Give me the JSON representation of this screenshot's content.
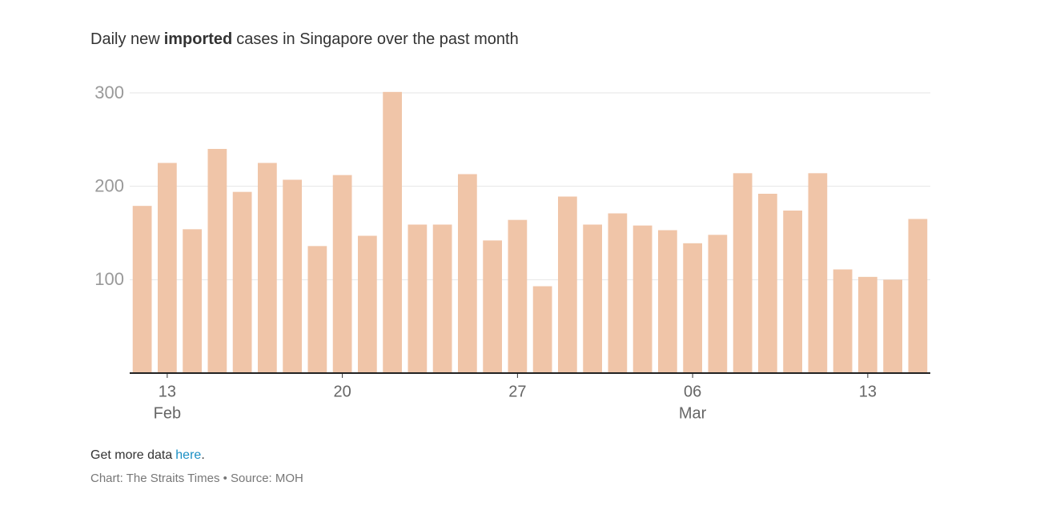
{
  "chart_data": {
    "type": "bar",
    "title": [
      "Daily new",
      "imported",
      "cases in Singapore over the past month"
    ],
    "categories": [
      null,
      "13",
      null,
      null,
      null,
      null,
      null,
      null,
      "20",
      null,
      null,
      null,
      null,
      null,
      null,
      "27",
      null,
      null,
      null,
      null,
      null,
      null,
      "06",
      null,
      null,
      null,
      null,
      null,
      null,
      "13",
      null,
      null
    ],
    "category_months": [
      null,
      "Feb",
      null,
      null,
      null,
      null,
      null,
      null,
      null,
      null,
      null,
      null,
      null,
      null,
      null,
      null,
      null,
      null,
      null,
      null,
      null,
      null,
      "Mar",
      null,
      null,
      null,
      null,
      null,
      null,
      null,
      null,
      null
    ],
    "values": [
      179,
      225,
      154,
      240,
      194,
      225,
      207,
      136,
      212,
      147,
      301,
      159,
      159,
      213,
      142,
      164,
      93,
      189,
      159,
      171,
      158,
      153,
      139,
      148,
      214,
      192,
      174,
      214,
      111,
      103,
      100,
      165
    ],
    "color": "#f0c5a8",
    "ylim": [
      0,
      300
    ],
    "yticks": [
      100,
      200,
      300
    ],
    "grid": true,
    "footer": {
      "text": "Get more data",
      "link": "here",
      "end": "."
    },
    "source": "Chart: The Straits Times • Source: MOH"
  }
}
